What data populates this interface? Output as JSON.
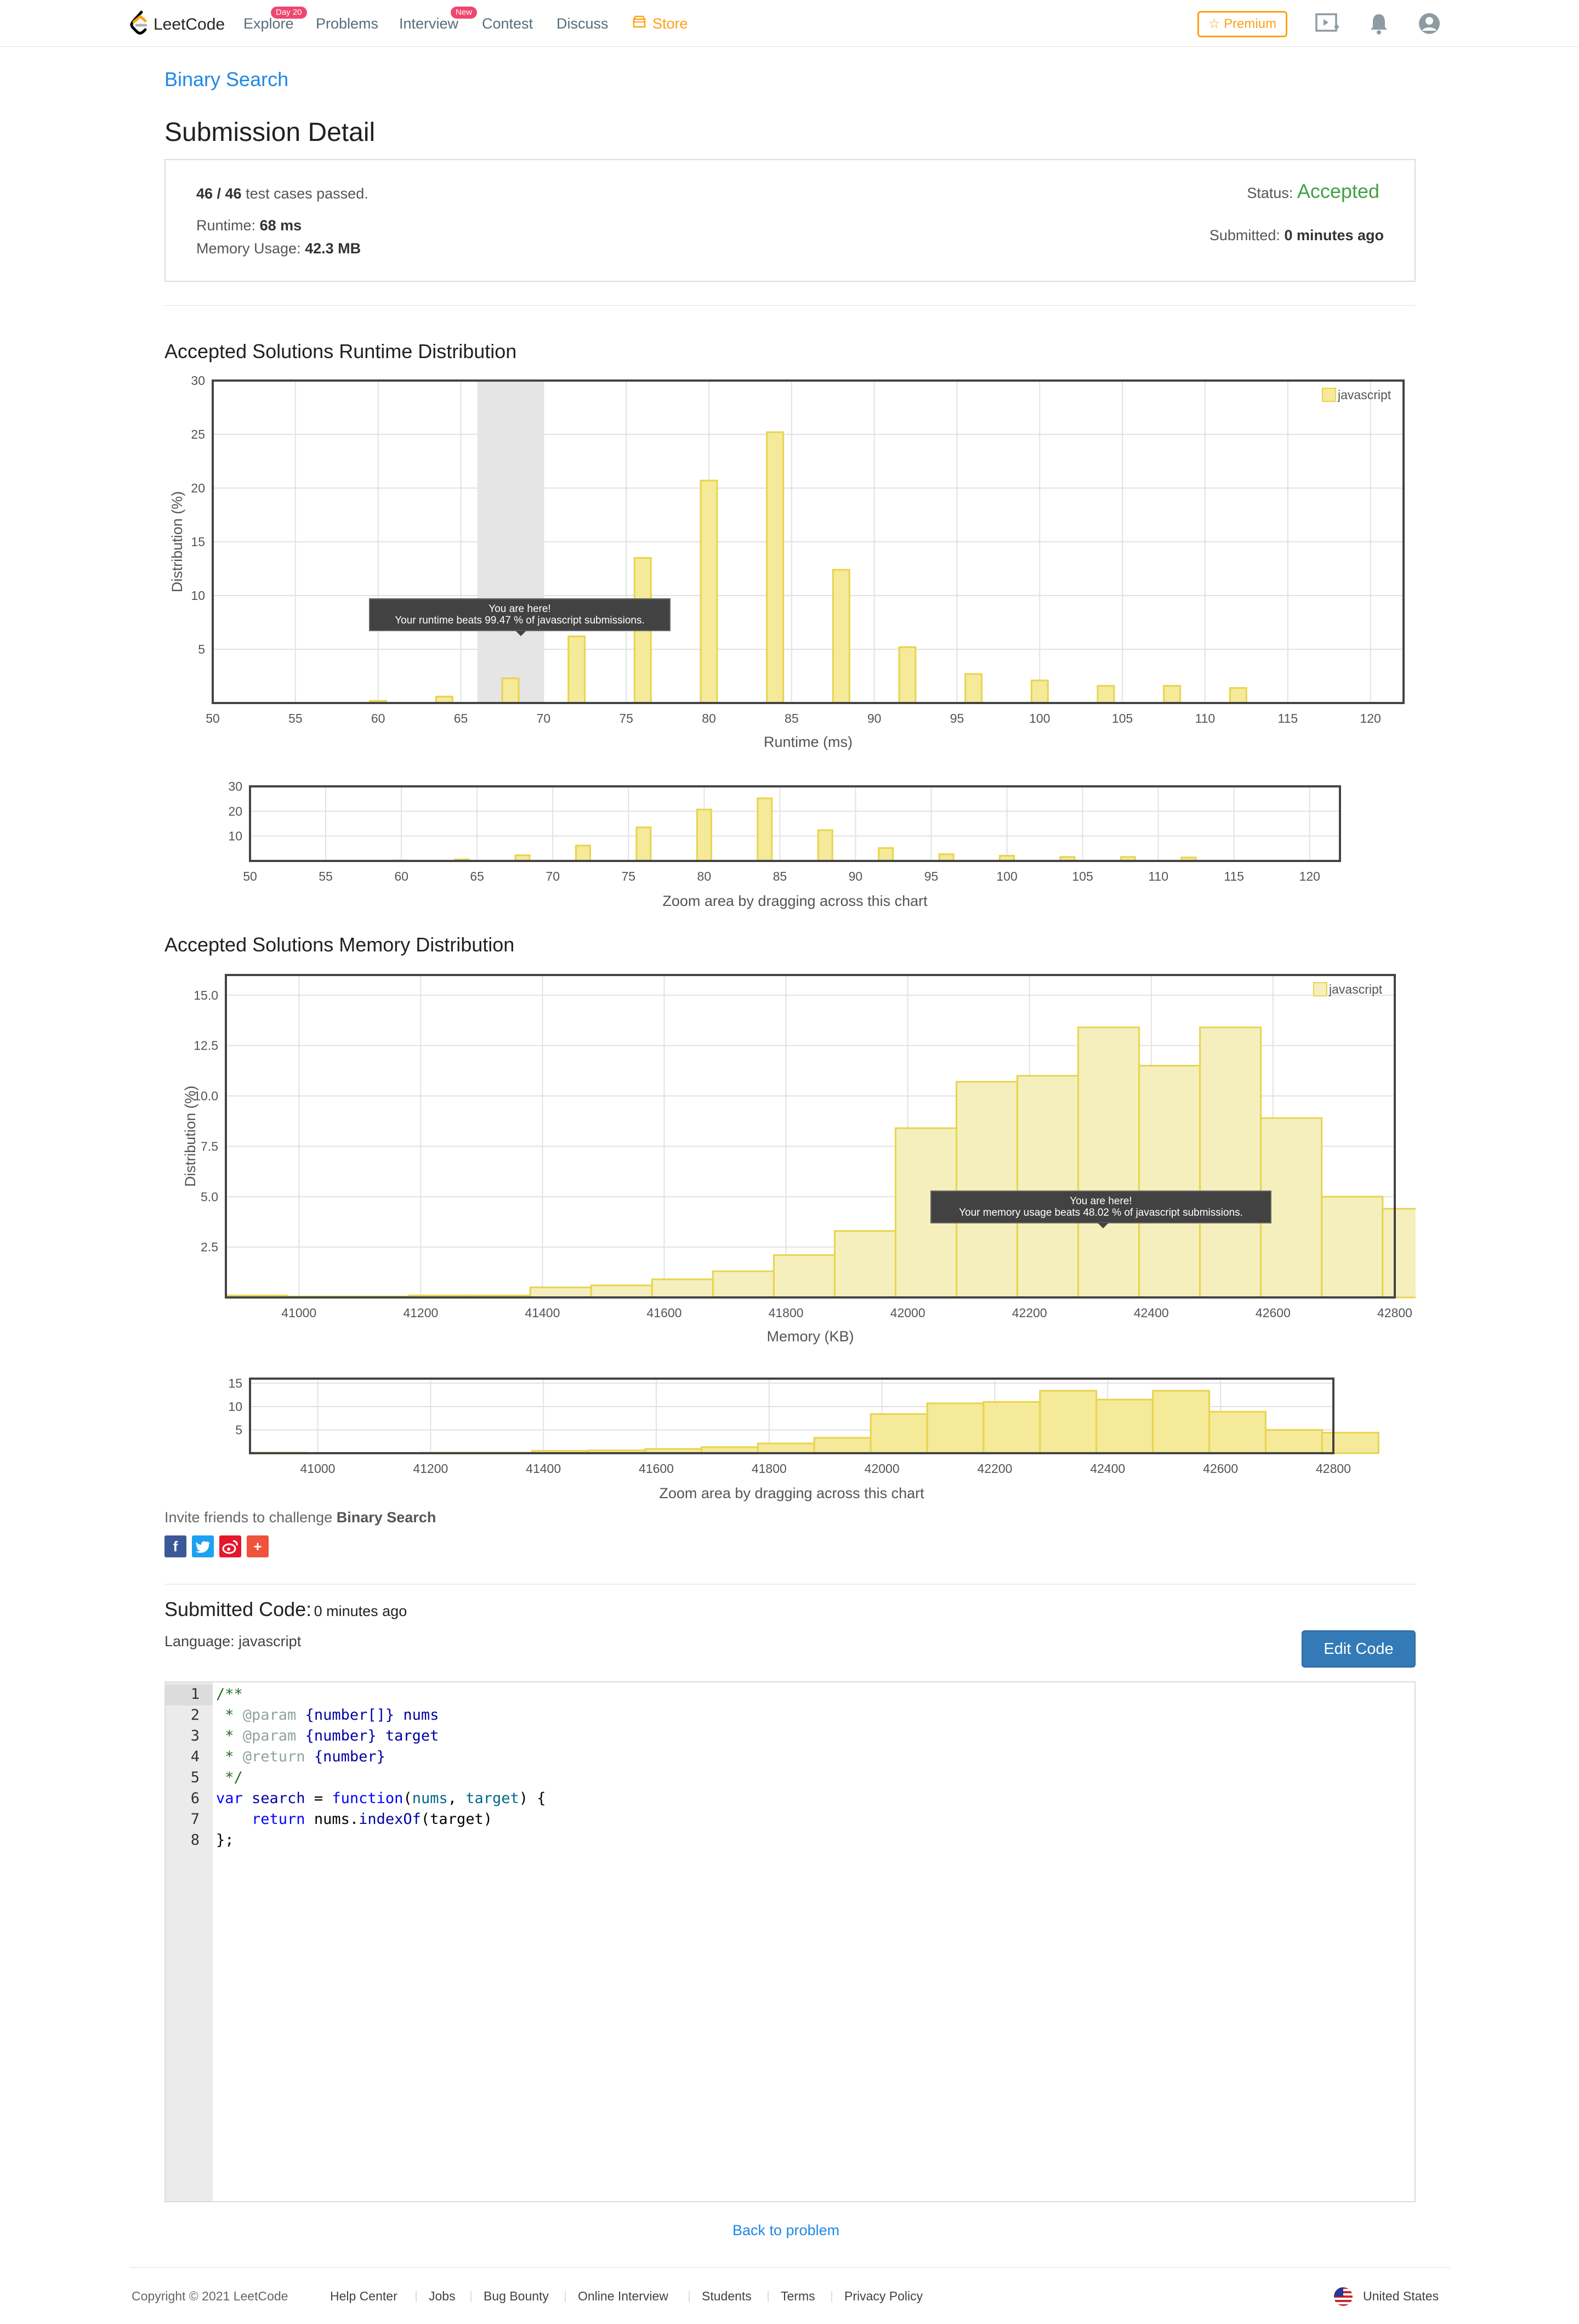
{
  "nav": {
    "logo": "LeetCode",
    "items": [
      {
        "label": "Explore",
        "badge": "Day 20"
      },
      {
        "label": "Problems"
      },
      {
        "label": "Interview",
        "badge": "New"
      },
      {
        "label": "Contest"
      },
      {
        "label": "Discuss"
      },
      {
        "label": "Store"
      }
    ],
    "premium": "Premium"
  },
  "breadcrumb": "Binary Search",
  "page_title": "Submission Detail",
  "status": {
    "cases_passed": "46 / 46",
    "cases_text": "test cases passed.",
    "runtime_label": "Runtime:",
    "runtime": "68 ms",
    "memory_label": "Memory Usage:",
    "memory": "42.3 MB",
    "status_label": "Status:",
    "status_value": "Accepted",
    "submitted_label": "Submitted:",
    "submitted_value": "0 minutes ago",
    "accent_color": "#43a047"
  },
  "runtime_section": {
    "title": "Accepted Solutions Runtime Distribution"
  },
  "memory_section": {
    "title": "Accepted Solutions Memory Distribution"
  },
  "chart_data": [
    {
      "type": "bar",
      "xlabel": "Runtime (ms)",
      "ylabel": "Distribution (%)",
      "xlim": [
        50,
        122
      ],
      "ylim": [
        0,
        30
      ],
      "xticks": [
        50,
        55,
        60,
        65,
        70,
        75,
        80,
        85,
        90,
        95,
        100,
        105,
        110,
        115,
        120
      ],
      "yticks": [
        5,
        10,
        15,
        20,
        25,
        30
      ],
      "legend": "javascript",
      "legend_position": "top-right",
      "grid": true,
      "series": [
        {
          "name": "javascript",
          "color": "#f5e99a",
          "edge": "#e8d44d"
        }
      ],
      "x": [
        60,
        64,
        68,
        72,
        76,
        80,
        84,
        88,
        92,
        96,
        100,
        104,
        108,
        112
      ],
      "values": [
        0.2,
        0.6,
        2.3,
        6.2,
        13.5,
        20.7,
        25.2,
        12.4,
        5.2,
        2.7,
        2.1,
        1.6,
        1.6,
        1.4
      ],
      "highlight_range": [
        66,
        70
      ],
      "tooltip": {
        "line1": "You are here!",
        "line2": "Your runtime beats 99.47 % of javascript submissions."
      }
    },
    {
      "type": "bar",
      "caption": "Zoom area by dragging across this chart",
      "xlim": [
        50,
        122
      ],
      "ylim": [
        0,
        30
      ],
      "xticks": [
        50,
        55,
        60,
        65,
        70,
        75,
        80,
        85,
        90,
        95,
        100,
        105,
        110,
        115,
        120
      ],
      "yticks": [
        10,
        20,
        30
      ],
      "grid": true,
      "x": [
        60,
        64,
        68,
        72,
        76,
        80,
        84,
        88,
        92,
        96,
        100,
        104,
        108,
        112
      ],
      "values": [
        0.2,
        0.6,
        2.3,
        6.2,
        13.5,
        20.7,
        25.2,
        12.4,
        5.2,
        2.7,
        2.1,
        1.6,
        1.6,
        1.4
      ]
    },
    {
      "type": "bar",
      "xlabel": "Memory (KB)",
      "ylabel": "Distribution (%)",
      "xlim": [
        40880,
        42800
      ],
      "ylim": [
        0,
        16
      ],
      "xticks": [
        41000,
        41200,
        41400,
        41600,
        41800,
        42000,
        42200,
        42400,
        42600,
        42800
      ],
      "yticks": [
        2.5,
        5.0,
        7.5,
        10.0,
        12.5,
        15.0
      ],
      "ytick_labels": [
        "2.5",
        "5.0",
        "7.5",
        "10.0",
        "12.5",
        "15.0"
      ],
      "legend": "javascript",
      "legend_position": "top-right",
      "grid": true,
      "series": [
        {
          "name": "javascript",
          "color": "#f5efbd",
          "edge": "#e8d44d"
        }
      ],
      "x": [
        40880,
        40980,
        41080,
        41180,
        41280,
        41380,
        41480,
        41580,
        41680,
        41780,
        41880,
        41980,
        42080,
        42180,
        42280,
        42380,
        42480,
        42580,
        42680,
        42780
      ],
      "values": [
        0.1,
        0.05,
        0.05,
        0.1,
        0.1,
        0.5,
        0.6,
        0.9,
        1.3,
        2.1,
        3.3,
        8.4,
        10.7,
        11.0,
        13.4,
        11.5,
        13.4,
        8.9,
        5.0,
        4.4
      ],
      "bin_width": 100,
      "tooltip": {
        "line1": "You are here!",
        "line2": "Your memory usage beats 48.02 % of javascript submissions."
      }
    },
    {
      "type": "bar",
      "caption": "Zoom area by dragging across this chart",
      "xlim": [
        40880,
        42800
      ],
      "ylim": [
        0,
        16
      ],
      "xticks": [
        41000,
        41200,
        41400,
        41600,
        41800,
        42000,
        42200,
        42400,
        42600,
        42800
      ],
      "yticks": [
        5,
        10,
        15
      ],
      "grid": true,
      "x": [
        40880,
        40980,
        41080,
        41180,
        41280,
        41380,
        41480,
        41580,
        41680,
        41780,
        41880,
        41980,
        42080,
        42180,
        42280,
        42380,
        42480,
        42580,
        42680,
        42780
      ],
      "values": [
        0.1,
        0.05,
        0.05,
        0.1,
        0.1,
        0.5,
        0.6,
        0.9,
        1.3,
        2.1,
        3.3,
        8.4,
        10.7,
        11.0,
        13.4,
        11.5,
        13.4,
        8.9,
        5.0,
        4.4
      ],
      "bin_width": 100
    }
  ],
  "invite": {
    "text": "Invite friends to challenge",
    "problem": "Binary Search"
  },
  "social": [
    "facebook-icon",
    "twitter-icon",
    "weibo-icon",
    "plus-icon"
  ],
  "submitted_code": {
    "title": "Submitted Code:",
    "time": "0 minutes ago",
    "language_label": "Language:",
    "language": "javascript",
    "edit_button": "Edit Code",
    "lines": [
      "/**",
      " * @param {number[]} nums",
      " * @param {number} target",
      " * @return {number}",
      " */",
      "var search = function(nums, target) {",
      "    return nums.indexOf(target)",
      "};"
    ],
    "line_numbers": [
      "1",
      "2",
      "3",
      "4",
      "5",
      "6",
      "7",
      "8"
    ]
  },
  "back_link": "Back to problem",
  "footer": {
    "copyright": "Copyright © 2021 LeetCode",
    "links": [
      "Help Center",
      "Jobs",
      "Bug Bounty",
      "Online Interview",
      "Students",
      "Terms",
      "Privacy Policy"
    ],
    "region": "United States"
  }
}
